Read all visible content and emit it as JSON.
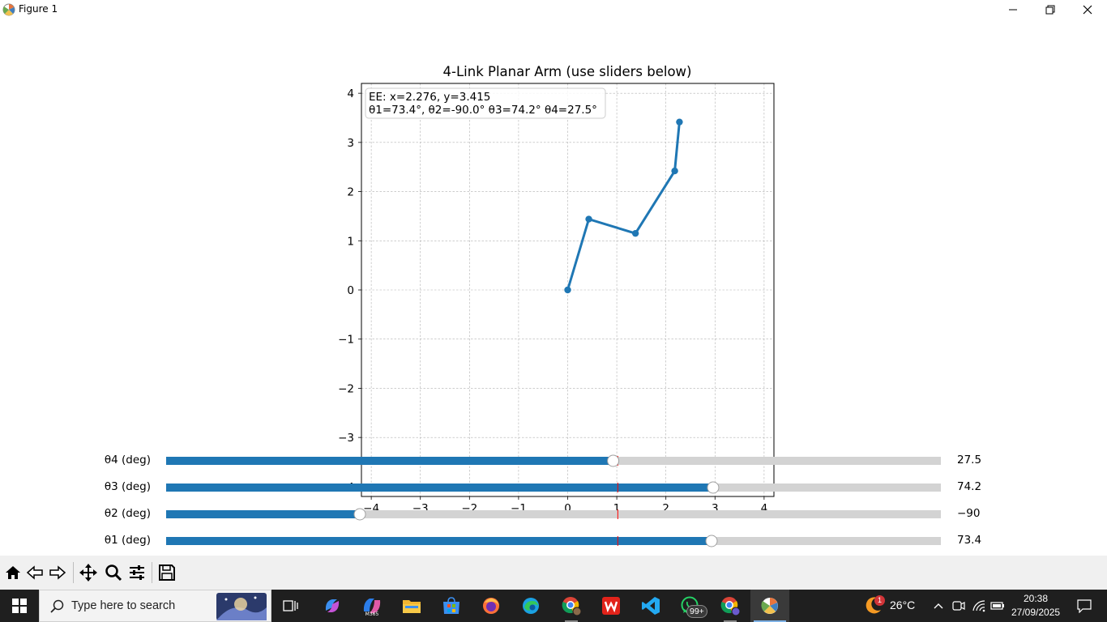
{
  "window": {
    "title": "Figure 1"
  },
  "chart_data": {
    "type": "line",
    "title": "4-Link Planar Arm (use sliders below)",
    "xlabel": "",
    "ylabel": "",
    "xlim": [
      -4.2,
      4.2
    ],
    "ylim": [
      -4.2,
      4.2
    ],
    "xticks": [
      -4,
      -3,
      -2,
      -1,
      0,
      1,
      2,
      3,
      4
    ],
    "yticks": [
      -4,
      -3,
      -2,
      -1,
      0,
      1,
      2,
      3,
      4
    ],
    "grid": true,
    "color": "#1f77b4",
    "series": [
      {
        "x": [
          0,
          0.43,
          1.38,
          2.18,
          2.276
        ],
        "y": [
          0,
          1.44,
          1.15,
          2.42,
          3.415
        ]
      }
    ],
    "annotation": {
      "line1": "EE: x=2.276, y=3.415",
      "line2": "θ1=73.4°, θ2=-90.0° θ3=74.2° θ4=27.5°"
    }
  },
  "sliders": [
    {
      "label": "θ4 (deg)",
      "value_text": "27.5",
      "fraction": 0.577,
      "valinit_fraction": 0.583
    },
    {
      "label": "θ3 (deg)",
      "value_text": "74.2",
      "fraction": 0.706,
      "valinit_fraction": 0.583
    },
    {
      "label": "θ2 (deg)",
      "value_text": "−90",
      "fraction": 0.25,
      "valinit_fraction": 0.583
    },
    {
      "label": "θ1 (deg)",
      "value_text": "73.4",
      "fraction": 0.704,
      "valinit_fraction": 0.583
    }
  ],
  "slider_colors": {
    "fill": "#1f77b4",
    "track": "#d3d3d3",
    "valinit": "#ff0000"
  },
  "toolbar": {
    "buttons": [
      "home-icon",
      "back-icon",
      "forward-icon",
      "pan-icon",
      "zoom-icon",
      "configure-icon",
      "save-icon"
    ]
  },
  "taskbar": {
    "search_placeholder": "Type here to search",
    "weather_temp": "26°C",
    "weather_badge": "1",
    "whatsapp_badge": "99+",
    "time": "20:38",
    "date": "27/09/2025"
  }
}
